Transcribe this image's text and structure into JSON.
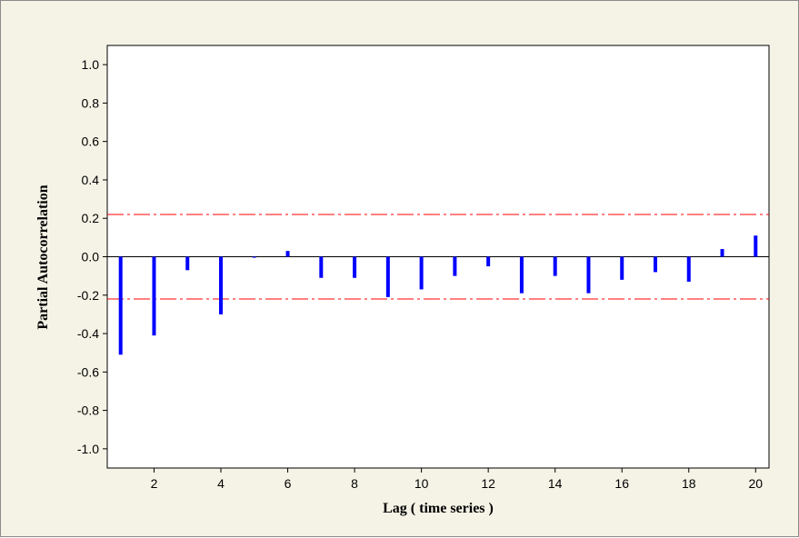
{
  "chart_data": {
    "type": "bar",
    "xlabel": "Lag ( time series )",
    "ylabel": "Partial Autocorrelation",
    "x": [
      1,
      2,
      3,
      4,
      5,
      6,
      7,
      8,
      9,
      10,
      11,
      12,
      13,
      14,
      15,
      16,
      17,
      18,
      19,
      20
    ],
    "values": [
      -0.51,
      -0.41,
      -0.07,
      -0.3,
      -0.005,
      0.03,
      -0.11,
      -0.11,
      -0.21,
      -0.17,
      -0.1,
      -0.05,
      -0.19,
      -0.1,
      -0.19,
      -0.12,
      -0.08,
      -0.13,
      0.04,
      0.11
    ],
    "xlim": [
      0.6,
      20.4
    ],
    "ylim": [
      -1.1,
      1.1
    ],
    "xticks": [
      2,
      4,
      6,
      8,
      10,
      12,
      14,
      16,
      18,
      20
    ],
    "yticks": [
      1.0,
      0.8,
      0.6,
      0.4,
      0.2,
      0.0,
      -0.2,
      -0.4,
      -0.6,
      -0.8,
      -1.0
    ],
    "ytick_labels": [
      "1.0",
      "0.8",
      "0.6",
      "0.4",
      "0.2",
      "0.0",
      "-0.2",
      "-0.4",
      "-0.6",
      "-0.8",
      "-1.0"
    ],
    "xtick_labels": [
      "2",
      "4",
      "6",
      "8",
      "10",
      "12",
      "14",
      "16",
      "18",
      "20"
    ],
    "significance_limits": [
      0.22,
      -0.22
    ],
    "grid": false,
    "colors": {
      "bars": "#0000ff",
      "limits": "#ff0000",
      "background": "#f5f3e6",
      "plot_area": "#ffffff",
      "zero_line": "#000000"
    }
  }
}
